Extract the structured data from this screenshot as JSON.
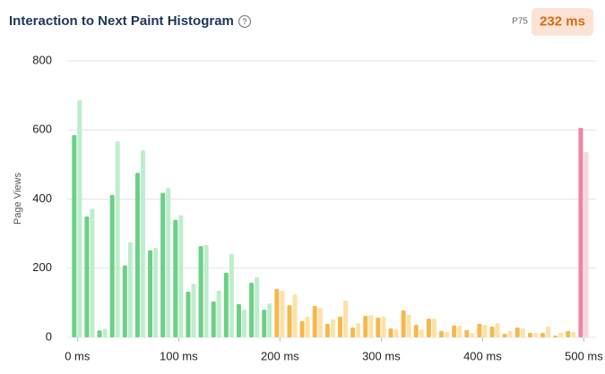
{
  "chart_data": {
    "type": "histogram",
    "title": "Interaction to Next Paint Histogram",
    "p75": {
      "name": "P75",
      "value": 232,
      "value_label": "232 ms"
    },
    "y_label": "Page Views",
    "x": [
      0,
      12.5,
      25,
      37.5,
      50,
      62.5,
      75,
      87.5,
      100,
      112.5,
      125,
      137.5,
      150,
      162.5,
      175,
      187.5,
      200,
      212.5,
      225,
      237.5,
      250,
      262.5,
      275,
      287.5,
      300,
      312.5,
      325,
      337.5,
      350,
      362.5,
      375,
      387.5,
      400,
      412.5,
      425,
      437.5,
      450,
      462.5,
      475,
      487.5,
      500
    ],
    "series": [
      {
        "values": [
          585,
          350,
          20,
          412,
          208,
          476,
          252,
          418,
          340,
          132,
          264,
          104,
          187,
          96,
          158,
          80,
          140,
          93,
          47,
          91,
          39,
          60,
          28,
          62,
          57,
          26,
          78,
          36,
          54,
          18,
          34,
          21,
          39,
          31,
          10,
          28,
          13,
          13,
          5,
          18,
          606
        ],
        "colors": [
          "#6dcf87",
          "#6dcf87",
          "#6dcf87",
          "#6dcf87",
          "#6dcf87",
          "#6dcf87",
          "#6dcf87",
          "#6dcf87",
          "#6dcf87",
          "#6dcf87",
          "#6dcf87",
          "#6dcf87",
          "#6dcf87",
          "#6dcf87",
          "#6dcf87",
          "#6dcf87",
          "#f6b84c",
          "#f6b84c",
          "#f6b84c",
          "#f6b84c",
          "#f6b84c",
          "#f6b84c",
          "#f6b84c",
          "#f6b84c",
          "#f6b84c",
          "#f6b84c",
          "#f6b84c",
          "#f6b84c",
          "#f6b84c",
          "#f6b84c",
          "#f6b84c",
          "#f6b84c",
          "#f6b84c",
          "#f6b84c",
          "#f6b84c",
          "#f6b84c",
          "#f6b84c",
          "#f6b84c",
          "#f6b84c",
          "#f6b84c",
          "#ef85a3"
        ]
      },
      {
        "values": [
          686,
          372,
          25,
          567,
          275,
          541,
          259,
          432,
          353,
          155,
          267,
          135,
          241,
          80,
          174,
          98,
          135,
          124,
          60,
          86,
          52,
          106,
          41,
          65,
          60,
          23,
          65,
          23,
          54,
          16,
          34,
          13,
          36,
          41,
          18,
          26,
          13,
          31,
          13,
          16,
          536
        ],
        "colors": [
          "#bdeecb",
          "#bdeecb",
          "#bdeecb",
          "#bdeecb",
          "#bdeecb",
          "#bdeecb",
          "#bdeecb",
          "#bdeecb",
          "#bdeecb",
          "#bdeecb",
          "#bdeecb",
          "#bdeecb",
          "#bdeecb",
          "#bdeecb",
          "#bdeecb",
          "#bdeecb",
          "#fde1a8",
          "#fde1a8",
          "#fde1a8",
          "#fde1a8",
          "#fde1a8",
          "#fde1a8",
          "#fde1a8",
          "#fde1a8",
          "#fde1a8",
          "#fde1a8",
          "#fde1a8",
          "#fde1a8",
          "#fde1a8",
          "#fde1a8",
          "#fde1a8",
          "#fde1a8",
          "#fde1a8",
          "#fde1a8",
          "#fde1a8",
          "#fde1a8",
          "#fde1a8",
          "#fde1a8",
          "#fde1a8",
          "#fde1a8",
          "#f8d4de"
        ]
      }
    ],
    "xlim": [
      -10,
      512
    ],
    "xticks": [
      {
        "value": 0,
        "label": "0 ms"
      },
      {
        "value": 100,
        "label": "100 ms"
      },
      {
        "value": 200,
        "label": "200 ms"
      },
      {
        "value": 300,
        "label": "300 ms"
      },
      {
        "value": 400,
        "label": "400 ms"
      },
      {
        "value": 500,
        "label": "500 ms"
      }
    ],
    "ylim": [
      0,
      800
    ],
    "yticks": [
      0,
      200,
      400,
      600,
      800
    ],
    "grid": true
  }
}
